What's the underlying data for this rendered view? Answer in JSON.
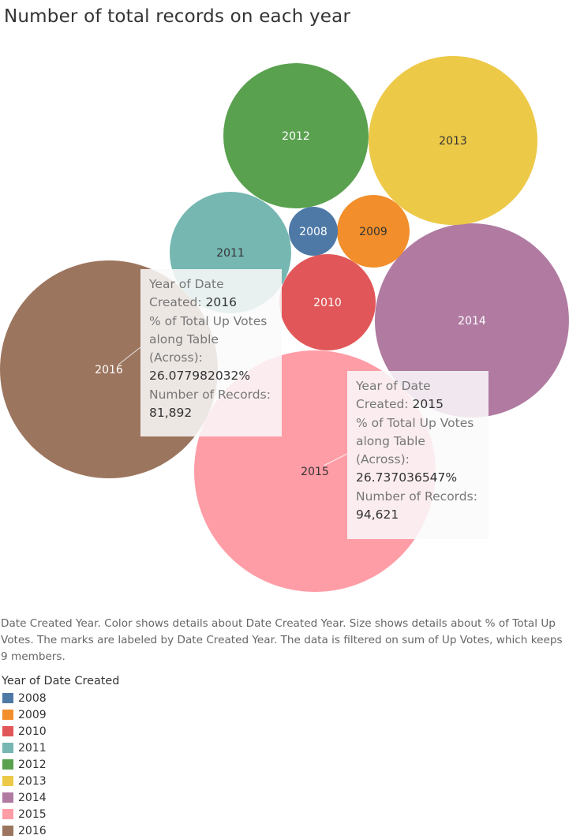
{
  "title": "Number of total records on each year",
  "chart_data": {
    "type": "bubble",
    "title": "Number of total records on each year",
    "bubbles": [
      {
        "label": "2008",
        "color": "#4E79A7",
        "text_color": "#ffffff"
      },
      {
        "label": "2009",
        "color": "#F28E2B",
        "text_color": "#333333"
      },
      {
        "label": "2010",
        "color": "#E15759",
        "text_color": "#ffffff"
      },
      {
        "label": "2011",
        "color": "#76B7B2",
        "text_color": "#333333"
      },
      {
        "label": "2012",
        "color": "#59A14F",
        "text_color": "#ffffff"
      },
      {
        "label": "2013",
        "color": "#EDC948",
        "text_color": "#333333"
      },
      {
        "label": "2014",
        "color": "#B07AA1",
        "text_color": "#ffffff"
      },
      {
        "label": "2015",
        "color": "#FF9DA7",
        "text_color": "#333333",
        "pct_total_up_votes": 26.737036547,
        "number_of_records": 94621
      },
      {
        "label": "2016",
        "color": "#9C755F",
        "text_color": "#ffffff",
        "pct_total_up_votes": 26.077982032,
        "number_of_records": 81892
      }
    ],
    "legend_title": "Year of Date Created"
  },
  "tooltips": [
    {
      "year_label": "Year of Date Created:",
      "year_value": "2016",
      "pct_label": "% of Total Up Votes along Table (Across):",
      "pct_value": "26.077982032%",
      "records_label": "Number of Records:",
      "records_value": "81,892"
    },
    {
      "year_label": "Year of Date Created:",
      "year_value": "2015",
      "pct_label": "% of Total Up Votes along Table (Across):",
      "pct_value": "26.737036547%",
      "records_label": "Number of Records:",
      "records_value": "94,621"
    }
  ],
  "caption": "Date Created Year.  Color shows details about Date Created Year.  Size shows details about % of Total Up Votes.  The marks are labeled by Date Created Year. The data is filtered on sum of Up Votes, which keeps 9 members.",
  "legend": {
    "title": "Year of Date Created",
    "items": [
      {
        "label": "2008",
        "color": "#4E79A7"
      },
      {
        "label": "2009",
        "color": "#F28E2B"
      },
      {
        "label": "2010",
        "color": "#E15759"
      },
      {
        "label": "2011",
        "color": "#76B7B2"
      },
      {
        "label": "2012",
        "color": "#59A14F"
      },
      {
        "label": "2013",
        "color": "#EDC948"
      },
      {
        "label": "2014",
        "color": "#B07AA1"
      },
      {
        "label": "2015",
        "color": "#FF9DA7"
      },
      {
        "label": "2016",
        "color": "#9C755F"
      }
    ]
  }
}
